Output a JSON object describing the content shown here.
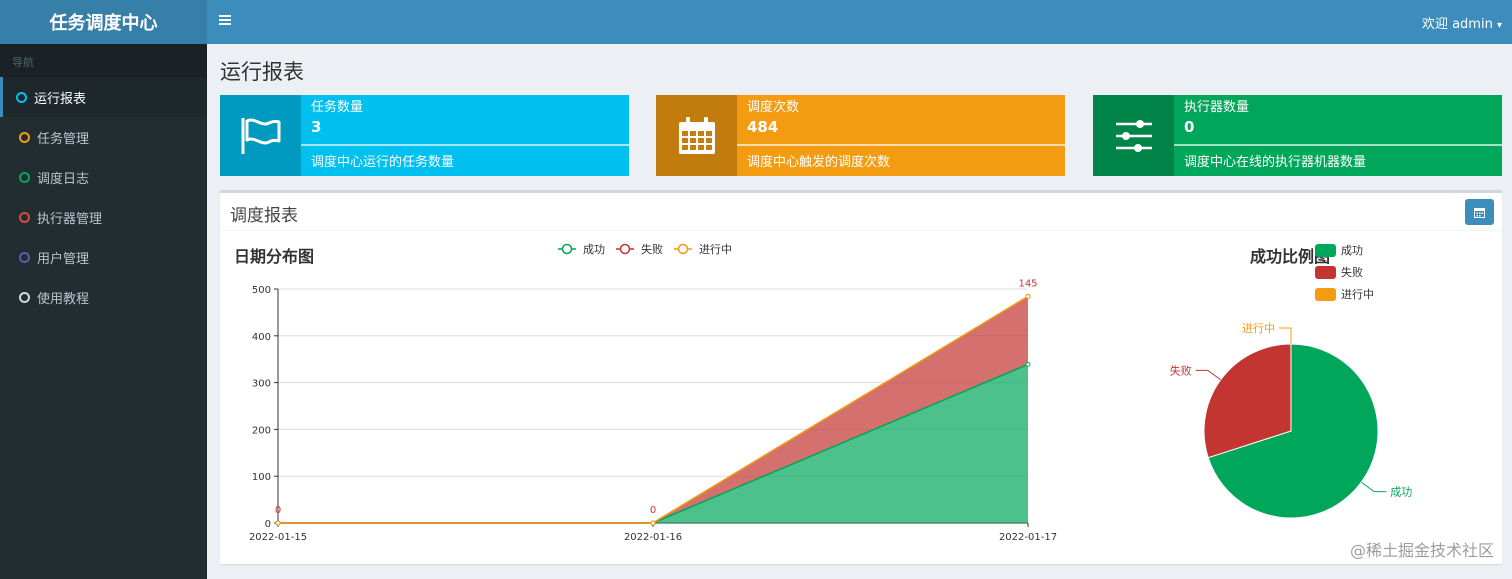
{
  "app": {
    "title": "任务调度中心"
  },
  "sidebar": {
    "header": "导航",
    "items": [
      {
        "label": "运行报表",
        "color": "#00c0ef",
        "active": true
      },
      {
        "label": "任务管理",
        "color": "#f39c12"
      },
      {
        "label": "调度日志",
        "color": "#00a65a"
      },
      {
        "label": "执行器管理",
        "color": "#dd4b39"
      },
      {
        "label": "用户管理",
        "color": "#605ca8"
      },
      {
        "label": "使用教程",
        "color": "#d2d6de"
      }
    ]
  },
  "topbar": {
    "toggle_icon": "hamburger-icon",
    "user_text": "欢迎 admin",
    "caret": "▾"
  },
  "page": {
    "title": "运行报表"
  },
  "info_boxes": [
    {
      "title": "任务数量",
      "value": "3",
      "desc": "调度中心运行的任务数量",
      "icon": "flag-icon",
      "color": "#00c0ef"
    },
    {
      "title": "调度次数",
      "value": "484",
      "desc": "调度中心触发的调度次数",
      "icon": "calendar-icon",
      "color": "#f39c12"
    },
    {
      "title": "执行器数量",
      "value": "0",
      "desc": "调度中心在线的执行器机器数量",
      "icon": "sliders-icon",
      "color": "#00a65a"
    }
  ],
  "report": {
    "title": "调度报表",
    "filter_icon": "calendar-icon"
  },
  "colors": {
    "success": "#00a65a",
    "fail": "#c23531",
    "running": "#f39c12"
  },
  "chart_data": [
    {
      "type": "area",
      "title": "日期分布图",
      "categories": [
        "2022-01-15",
        "2022-01-16",
        "2022-01-17"
      ],
      "stacked": true,
      "ylim": [
        0,
        500
      ],
      "yticks": [
        0,
        100,
        200,
        300,
        400,
        500
      ],
      "legend_position": "top-center",
      "series": [
        {
          "name": "成功",
          "values": [
            0,
            0,
            339
          ]
        },
        {
          "name": "失败",
          "values": [
            0,
            0,
            145
          ]
        },
        {
          "name": "进行中",
          "values": [
            0,
            0,
            0
          ]
        }
      ],
      "data_labels": [
        {
          "category": "2022-01-15",
          "text": "0"
        },
        {
          "category": "2022-01-16",
          "text": "0"
        },
        {
          "category": "2022-01-17",
          "text": "145"
        }
      ]
    },
    {
      "type": "pie",
      "title": "成功比例图",
      "legend_position": "top-left",
      "slices": [
        {
          "name": "成功",
          "value": 339
        },
        {
          "name": "失败",
          "value": 145
        },
        {
          "name": "进行中",
          "value": 0
        }
      ]
    }
  ],
  "watermark": "@稀土掘金技术社区"
}
